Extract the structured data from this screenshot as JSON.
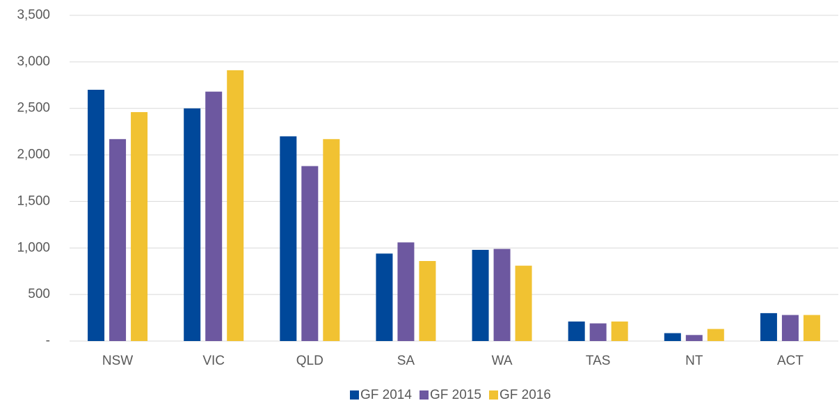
{
  "chart_data": {
    "type": "bar",
    "categories": [
      "NSW",
      "VIC",
      "QLD",
      "SA",
      "WA",
      "TAS",
      "NT",
      "ACT"
    ],
    "series": [
      {
        "name": "GF 2014",
        "color": "#00489a",
        "values": [
          2700,
          2500,
          2200,
          940,
          980,
          210,
          85,
          300
        ]
      },
      {
        "name": "GF 2015",
        "color": "#6d58a0",
        "values": [
          2170,
          2680,
          1880,
          1060,
          990,
          190,
          65,
          280
        ]
      },
      {
        "name": "GF 2016",
        "color": "#f1c232",
        "values": [
          2460,
          2910,
          2170,
          860,
          810,
          210,
          130,
          280
        ]
      }
    ],
    "ylim": [
      0,
      3500
    ],
    "yticks": [
      {
        "value": 0,
        "label": "-"
      },
      500,
      {
        "value": 1000,
        "label": "1,000"
      },
      {
        "value": 1500,
        "label": "1,500"
      },
      {
        "value": 2000,
        "label": "2,000"
      },
      {
        "value": 2500,
        "label": "2,500"
      },
      {
        "value": 3000,
        "label": "3,000"
      },
      {
        "value": 3500,
        "label": "3,500"
      }
    ],
    "grid": true,
    "legend": "bottom"
  }
}
